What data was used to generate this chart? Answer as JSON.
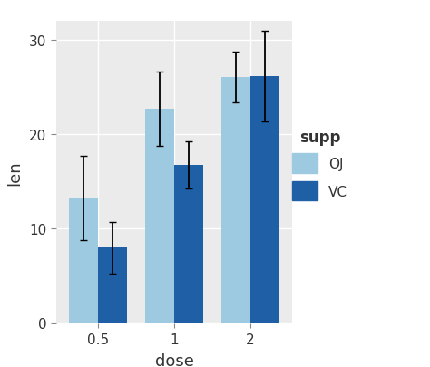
{
  "doses": [
    "0.5",
    "1",
    "2"
  ],
  "OJ_means": [
    13.23,
    22.7,
    26.06
  ],
  "VC_means": [
    7.98,
    16.77,
    26.14
  ],
  "OJ_sd": [
    4.46,
    3.91,
    2.66
  ],
  "VC_sd": [
    2.75,
    2.52,
    4.8
  ],
  "OJ_color": "#9ecae1",
  "VC_color": "#1f5fa6",
  "xlabel": "dose",
  "ylabel": "len",
  "ylim": [
    0,
    32
  ],
  "yticks": [
    0,
    10,
    20,
    30
  ],
  "legend_title": "supp",
  "legend_labels": [
    "OJ",
    "VC"
  ],
  "bg_color": "#ffffff",
  "panel_bg": "#ebebeb",
  "grid_color": "#ffffff",
  "bar_width": 0.38
}
